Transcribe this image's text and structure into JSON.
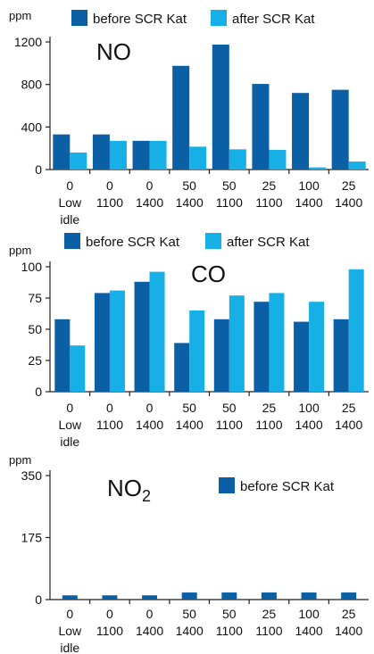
{
  "chart_data": [
    {
      "type": "bar",
      "title": "NO",
      "title_subscript": "",
      "ylabel": "ppm",
      "ylim": [
        0,
        1200
      ],
      "yticks": [
        0,
        400,
        800,
        1200
      ],
      "categories": [
        [
          "0",
          "Low",
          "idle"
        ],
        [
          "0",
          "1100"
        ],
        [
          "0",
          "1400"
        ],
        [
          "50",
          "1400"
        ],
        [
          "50",
          "1100"
        ],
        [
          "25",
          "1100"
        ],
        [
          "100",
          "1400"
        ],
        [
          "25",
          "1400"
        ]
      ],
      "series": [
        {
          "name": "before SCR Kat",
          "color": "#0b5fa5",
          "values": [
            330,
            330,
            270,
            975,
            1175,
            805,
            720,
            750
          ]
        },
        {
          "name": "after SCR Kat",
          "color": "#17b0e6",
          "values": [
            160,
            270,
            270,
            215,
            190,
            185,
            20,
            75
          ]
        }
      ],
      "legend_position": "top"
    },
    {
      "type": "bar",
      "title": "CO",
      "title_subscript": "",
      "ylabel": "ppm",
      "ylim": [
        0,
        100
      ],
      "yticks": [
        0,
        25,
        50,
        75,
        100
      ],
      "categories": [
        [
          "0",
          "Low",
          "idle"
        ],
        [
          "0",
          "1100"
        ],
        [
          "0",
          "1400"
        ],
        [
          "50",
          "1400"
        ],
        [
          "50",
          "1100"
        ],
        [
          "25",
          "1100"
        ],
        [
          "100",
          "1400"
        ],
        [
          "25",
          "1400"
        ]
      ],
      "series": [
        {
          "name": "before SCR Kat",
          "color": "#0b5fa5",
          "values": [
            58,
            79,
            88,
            39,
            58,
            72,
            56,
            58
          ]
        },
        {
          "name": "after SCR Kat",
          "color": "#17b0e6",
          "values": [
            37,
            81,
            96,
            65,
            77,
            79,
            72,
            98
          ]
        }
      ],
      "legend_position": "top"
    },
    {
      "type": "bar",
      "title": "NO",
      "title_subscript": "2",
      "ylabel": "ppm",
      "ylim": [
        0,
        350
      ],
      "yticks": [
        0,
        175,
        350
      ],
      "categories": [
        [
          "0",
          "Low",
          "idle"
        ],
        [
          "0",
          "1100"
        ],
        [
          "0",
          "1400"
        ],
        [
          "50",
          "1400"
        ],
        [
          "50",
          "1100"
        ],
        [
          "25",
          "1100"
        ],
        [
          "100",
          "1400"
        ],
        [
          "25",
          "1400"
        ]
      ],
      "series": [
        {
          "name": "before SCR Kat",
          "color": "#0b5fa5",
          "values": [
            12,
            12,
            12,
            20,
            20,
            20,
            20,
            20
          ]
        }
      ],
      "legend_position": "top-right"
    }
  ]
}
